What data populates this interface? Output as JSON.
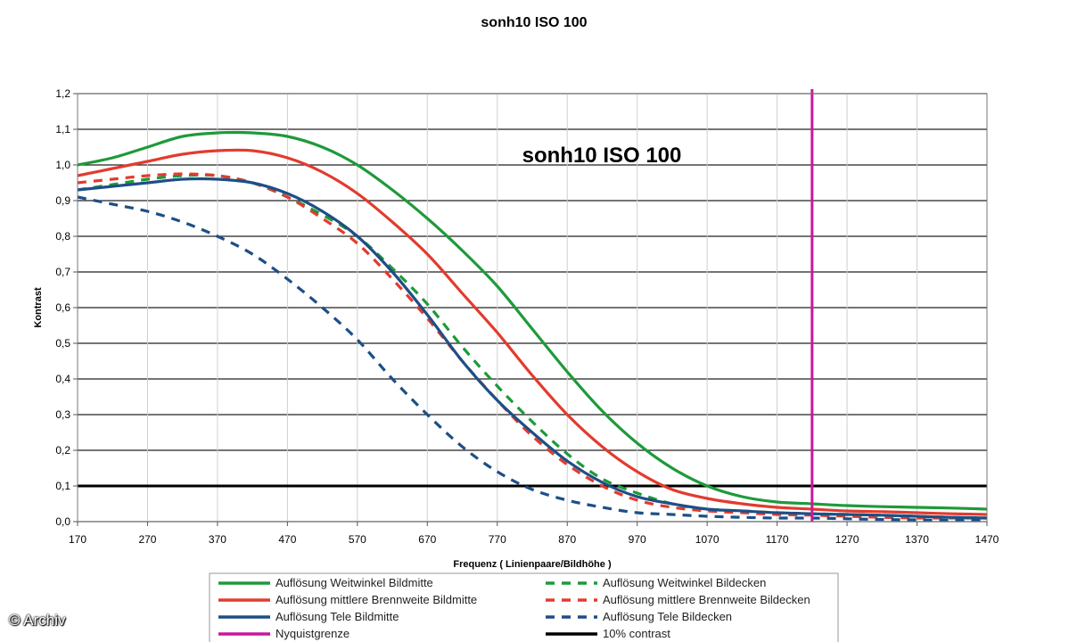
{
  "credit": "© Archiv",
  "chart_data": {
    "type": "line",
    "title": "sonh10 ISO 100",
    "inner_title": "sonh10 ISO 100",
    "xlabel": "Frequenz ( Linienpaare/Bildhöhe )",
    "ylabel": "Kontrast",
    "xlim": [
      170,
      1470
    ],
    "ylim": [
      0,
      1.2
    ],
    "x_ticks": [
      "170",
      "270",
      "370",
      "470",
      "570",
      "670",
      "770",
      "870",
      "970",
      "1070",
      "1170",
      "1270",
      "1370",
      "1470"
    ],
    "y_ticks": [
      "0,0",
      "0,1",
      "0,2",
      "0,3",
      "0,4",
      "0,5",
      "0,6",
      "0,7",
      "0,8",
      "0,9",
      "1,0",
      "1,1",
      "1,2"
    ],
    "grid": "horizontal",
    "legend_position": "bottom",
    "x": [
      170,
      220,
      270,
      320,
      370,
      420,
      470,
      520,
      570,
      620,
      670,
      720,
      770,
      820,
      870,
      920,
      970,
      1020,
      1070,
      1120,
      1170,
      1220,
      1270,
      1320,
      1370,
      1420,
      1470
    ],
    "series": [
      {
        "name": "Auflösung Weitwinkel Bildmitte",
        "color": "#1e9a3a",
        "style": "solid",
        "values": [
          1.0,
          1.02,
          1.05,
          1.08,
          1.09,
          1.09,
          1.08,
          1.05,
          1.0,
          0.93,
          0.85,
          0.76,
          0.66,
          0.54,
          0.42,
          0.31,
          0.22,
          0.15,
          0.1,
          0.07,
          0.055,
          0.05,
          0.045,
          0.042,
          0.04,
          0.038,
          0.035
        ]
      },
      {
        "name": "Auflösung Weitwinkel Bildecken",
        "color": "#1e9a3a",
        "style": "dashed",
        "values": [
          0.93,
          0.945,
          0.96,
          0.97,
          0.97,
          0.95,
          0.91,
          0.86,
          0.8,
          0.71,
          0.61,
          0.49,
          0.38,
          0.28,
          0.19,
          0.12,
          0.08,
          0.05,
          0.035,
          0.03,
          0.025,
          0.022,
          0.02,
          0.018,
          0.015,
          0.012,
          0.01
        ]
      },
      {
        "name": "Auflösung mittlere Brennweite Bildmitte",
        "color": "#e23b2e",
        "style": "solid",
        "values": [
          0.97,
          0.99,
          1.01,
          1.03,
          1.04,
          1.04,
          1.02,
          0.98,
          0.92,
          0.84,
          0.75,
          0.64,
          0.53,
          0.41,
          0.3,
          0.21,
          0.14,
          0.09,
          0.065,
          0.05,
          0.04,
          0.035,
          0.03,
          0.028,
          0.025,
          0.022,
          0.02
        ]
      },
      {
        "name": "Auflösung mittlere Brennweite Bildecken",
        "color": "#e23b2e",
        "style": "dashed",
        "values": [
          0.95,
          0.96,
          0.97,
          0.975,
          0.97,
          0.95,
          0.91,
          0.85,
          0.78,
          0.68,
          0.57,
          0.45,
          0.34,
          0.24,
          0.16,
          0.1,
          0.06,
          0.04,
          0.03,
          0.025,
          0.02,
          0.018,
          0.015,
          0.012,
          0.01,
          0.01,
          0.01
        ]
      },
      {
        "name": "Auflösung Tele Bildmitte",
        "color": "#1d4f86",
        "style": "solid",
        "values": [
          0.93,
          0.94,
          0.95,
          0.96,
          0.96,
          0.95,
          0.92,
          0.87,
          0.8,
          0.7,
          0.58,
          0.45,
          0.34,
          0.25,
          0.17,
          0.11,
          0.07,
          0.05,
          0.035,
          0.03,
          0.025,
          0.022,
          0.02,
          0.018,
          0.015,
          0.012,
          0.01
        ]
      },
      {
        "name": "Auflösung Tele Bildecken",
        "color": "#1d4f86",
        "style": "dashed",
        "values": [
          0.91,
          0.89,
          0.87,
          0.84,
          0.8,
          0.75,
          0.68,
          0.6,
          0.51,
          0.4,
          0.3,
          0.21,
          0.14,
          0.09,
          0.06,
          0.04,
          0.025,
          0.02,
          0.015,
          0.012,
          0.01,
          0.01,
          0.008,
          0.006,
          0.005,
          0.004,
          0.003
        ]
      }
    ],
    "reference_lines": [
      {
        "name": "Nyquistgrenze",
        "orientation": "vertical",
        "x": 1220,
        "color": "#c8189a"
      },
      {
        "name": "10% contrast",
        "orientation": "horizontal",
        "y": 0.1,
        "color": "#000000"
      }
    ]
  }
}
